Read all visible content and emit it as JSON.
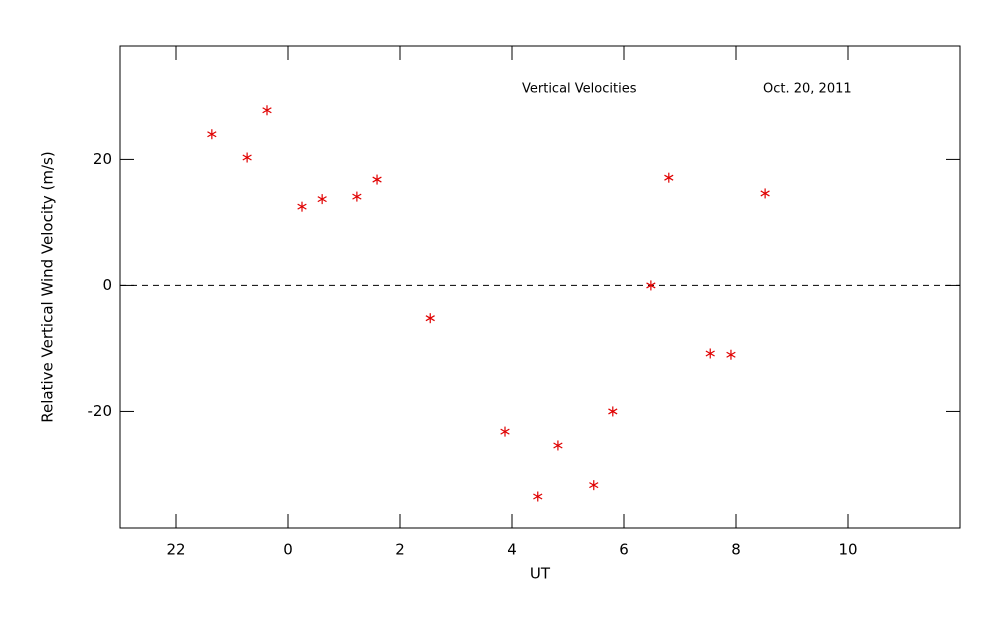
{
  "chart_data": {
    "type": "scatter",
    "xlabel": "UT",
    "ylabel": "Relative Vertical Wind Velocity (m/s)",
    "annotations": [
      "Vertical Velocities",
      "Oct. 20, 2011"
    ],
    "series": [
      {
        "color": "#e00000",
        "x": [
          -1.36,
          -0.73,
          -0.375,
          0.25,
          0.61,
          1.23,
          1.59,
          2.54,
          3.875,
          4.46,
          4.82,
          5.46,
          5.8,
          6.48,
          6.8,
          7.54,
          7.91,
          8.52
        ],
        "values": [
          24.0,
          20.3,
          27.8,
          12.5,
          13.7,
          14.1,
          16.8,
          -5.2,
          -23.2,
          -33.5,
          -25.4,
          -31.7,
          -20.0,
          0,
          17.1,
          -10.8,
          -11.0,
          14.6
        ]
      }
    ],
    "xlim": [
      -3,
      12
    ],
    "xticks": [
      {
        "value": -2,
        "label": "22"
      },
      0,
      2,
      4,
      6,
      8,
      10
    ],
    "ylim": [
      -38.5,
      38
    ],
    "yticks": [
      -20,
      0,
      20
    ],
    "hline": 0
  }
}
